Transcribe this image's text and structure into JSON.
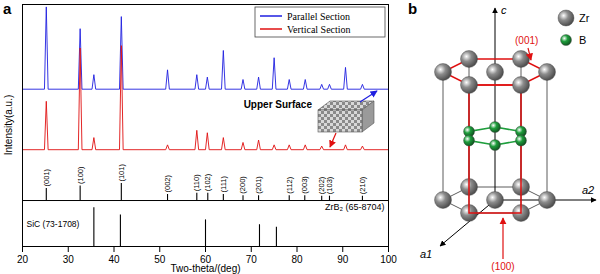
{
  "chart_data": {
    "type": "line",
    "panel_label": "a",
    "x_label": "Two-theta/(deg)",
    "y_label": "Intensity(a.u.)",
    "xlim": [
      20,
      100
    ],
    "xticks": [
      20,
      30,
      40,
      50,
      60,
      70,
      80,
      90,
      100
    ],
    "ylim": [
      0,
      100
    ],
    "yticks": [],
    "tick_labels": "x",
    "grid": false,
    "legend": "top-right",
    "series": [
      {
        "name": "Parallel Section",
        "color": "#1f1fe0",
        "x": [
          20,
          24.8,
          25.2,
          25.6,
          32.2,
          32.6,
          33.0,
          35.2,
          35.6,
          36.0,
          41.2,
          41.6,
          42.0,
          51.3,
          51.7,
          52.1,
          57.7,
          58.1,
          58.5,
          60.0,
          60.4,
          60.8,
          63.5,
          63.9,
          64.3,
          67.8,
          68.2,
          68.6,
          71.2,
          71.6,
          72.0,
          74.6,
          75.0,
          75.4,
          77.9,
          78.3,
          78.7,
          81.4,
          81.8,
          82.2,
          85.0,
          85.4,
          85.8,
          86.7,
          87.1,
          87.5,
          90.2,
          90.6,
          91.0,
          93.9,
          94.3,
          94.7,
          100
        ],
        "values": [
          65,
          65,
          99,
          65,
          65,
          90,
          65,
          65,
          71,
          65,
          65,
          95,
          65,
          65,
          73,
          65,
          65,
          71,
          65,
          65,
          70,
          65,
          65,
          81,
          65,
          65,
          69,
          65,
          65,
          70,
          65,
          65,
          78,
          65,
          65,
          69,
          65,
          65,
          69,
          65,
          65,
          67,
          65,
          65,
          67,
          65,
          65,
          74,
          65,
          65,
          67,
          65,
          65
        ]
      },
      {
        "name": "Vertical Section",
        "color": "#e01010",
        "x": [
          20,
          24.8,
          25.2,
          25.6,
          32.2,
          32.6,
          33.0,
          35.2,
          35.6,
          36.0,
          41.2,
          41.6,
          42.0,
          51.3,
          51.7,
          52.1,
          57.7,
          58.1,
          58.5,
          60.0,
          60.4,
          60.8,
          63.5,
          63.9,
          64.3,
          67.8,
          68.2,
          68.6,
          71.2,
          71.6,
          72.0,
          74.6,
          75.0,
          75.4,
          77.9,
          78.3,
          78.7,
          81.4,
          81.8,
          82.2,
          85.0,
          85.4,
          85.8,
          90.2,
          90.6,
          91.0,
          93.9,
          94.3,
          94.7,
          100
        ],
        "values": [
          40,
          40,
          60,
          40,
          40,
          82,
          40,
          40,
          45,
          40,
          40,
          83,
          40,
          40,
          42,
          40,
          40,
          48,
          40,
          40,
          47,
          40,
          40,
          45,
          40,
          40,
          43,
          40,
          40,
          44,
          40,
          40,
          42,
          40,
          40,
          42,
          40,
          40,
          42,
          40,
          40,
          41.5,
          40,
          40,
          42,
          40,
          40,
          41.5,
          40,
          40
        ]
      }
    ],
    "reference_patterns": [
      {
        "name": "ZrB₂ (65-8704)",
        "baseline": 19,
        "x": [
          25.2,
          32.6,
          41.6,
          51.7,
          58.1,
          60.5,
          63.9,
          68.2,
          71.6,
          78.3,
          81.7,
          85.4,
          87.1,
          94.3
        ],
        "values": [
          24,
          25,
          26,
          21.5,
          22,
          22,
          21.5,
          21,
          21,
          21,
          21,
          20.8,
          20.8,
          20.8
        ],
        "labels": [
          "(001)",
          "(100)",
          "(101)",
          "(002)",
          "(110)",
          "(102)",
          "(111)",
          "(200)",
          "(201)",
          "(112)",
          "(003)",
          "(202)",
          "(103)",
          "(210)"
        ]
      },
      {
        "name": "SiC (73-1708)",
        "baseline": 0,
        "x": [
          35.6,
          41.4,
          60.0,
          71.8,
          75.5
        ],
        "values": [
          16,
          13,
          11,
          9,
          8
        ]
      }
    ],
    "annotations": [
      {
        "text": "Upper Surface"
      }
    ]
  },
  "diagram": {
    "panel_label": "b",
    "axes": [
      "c",
      "a1",
      "a2"
    ],
    "atoms": [
      {
        "label": "Zr",
        "color": "#8c8c8c"
      },
      {
        "label": "B",
        "color": "#1e9e3c"
      }
    ],
    "planes": [
      {
        "label": "(001)",
        "color": "#e01010"
      },
      {
        "label": "(100)",
        "color": "#e01010"
      }
    ]
  }
}
